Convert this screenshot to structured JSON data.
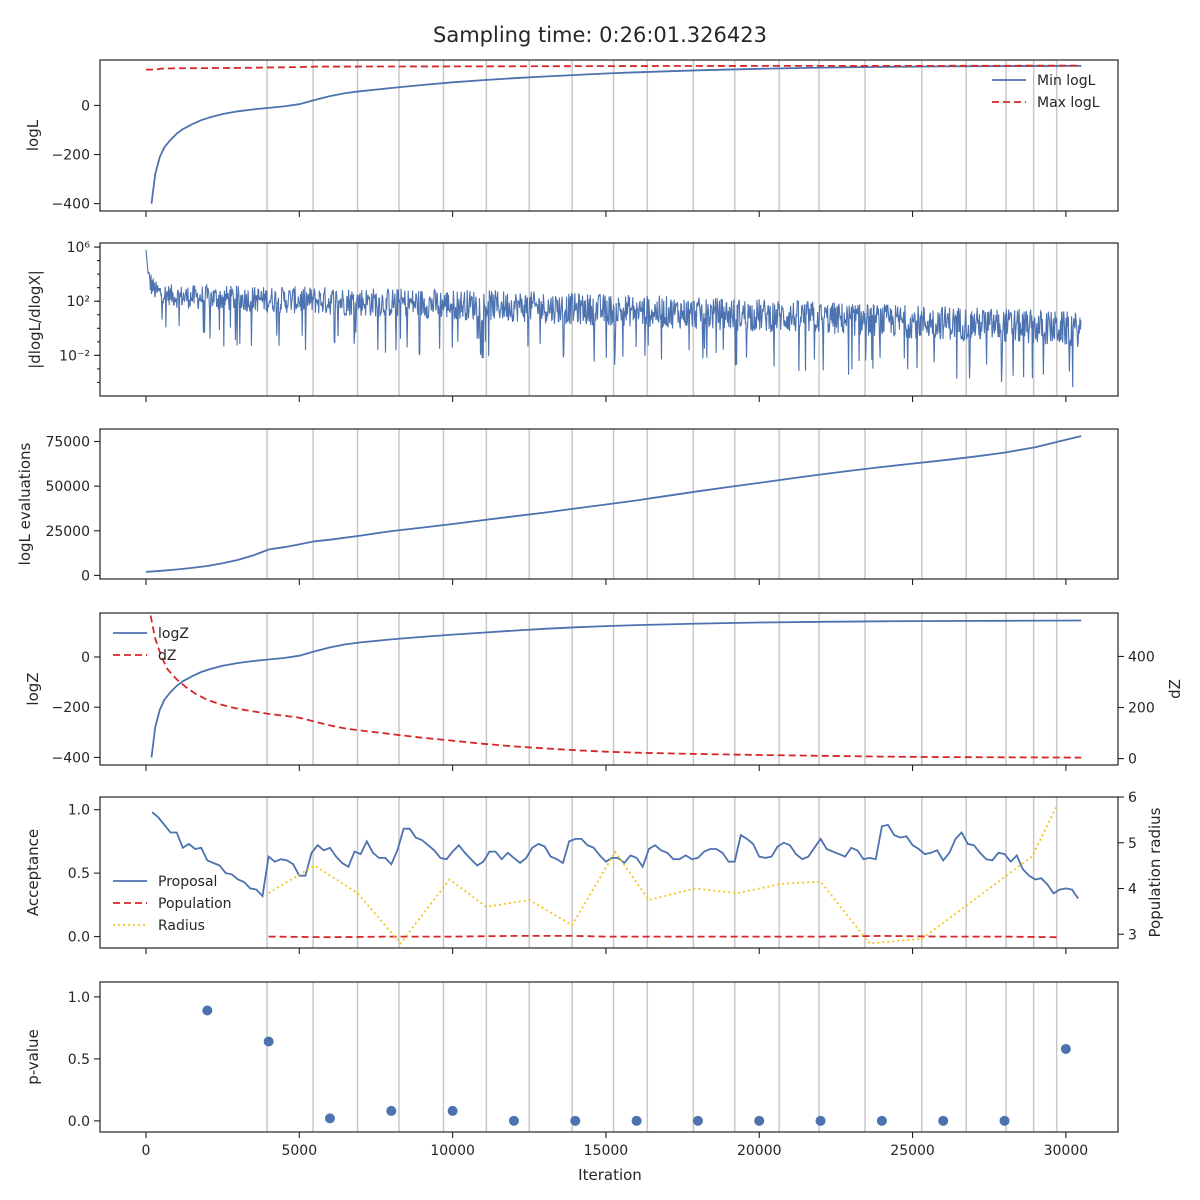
{
  "figure": {
    "title": "Sampling time: 0:26:01.326423",
    "xlabel": "Iteration"
  },
  "colors": {
    "blue": "#4c72b0",
    "red": "#d62728",
    "gold": "#f5c518",
    "vline": "#c8c8c8"
  },
  "chart_data": [
    {
      "type": "line",
      "name": "logL-panel",
      "ylabel": "logL",
      "xlim": [
        -1500,
        31700
      ],
      "ylim": [
        -430,
        185
      ],
      "yticks": [
        -400,
        -200,
        0
      ],
      "ytick_labels": [
        "−400",
        "−200",
        "0"
      ],
      "legend": "upper-right",
      "series": [
        {
          "name": "Min logL",
          "style": "solid",
          "color": "#4c72b0",
          "x": [
            180,
            300,
            450,
            600,
            800,
            1000,
            1200,
            1500,
            1800,
            2100,
            2500,
            3000,
            3500,
            4000,
            4500,
            5000,
            5500,
            6000,
            6500,
            7000,
            8000,
            9000,
            10000,
            11000,
            12000,
            13000,
            14000,
            15000,
            16000,
            17000,
            18000,
            20000,
            22000,
            24000,
            26000,
            28000,
            30500
          ],
          "y": [
            -400,
            -280,
            -210,
            -170,
            -140,
            -115,
            -97,
            -77,
            -60,
            -48,
            -35,
            -24,
            -16,
            -10,
            -4,
            5,
            22,
            38,
            50,
            58,
            71,
            83,
            94,
            103,
            111,
            118,
            124,
            130,
            135,
            139,
            143,
            149,
            154,
            157,
            159,
            160,
            161
          ]
        },
        {
          "name": "Max logL",
          "style": "dashed",
          "color": "#d62728",
          "x": [
            0,
            300,
            500,
            1000,
            3000,
            5000,
            5500,
            10000,
            15000,
            20000,
            25000,
            30500
          ],
          "y": [
            146,
            146,
            150,
            151,
            153,
            156,
            158,
            159,
            160,
            161,
            161,
            162
          ]
        }
      ]
    },
    {
      "type": "line",
      "name": "dlogL-panel",
      "ylabel": "|dlogL/dlogX|",
      "yscale": "log",
      "xlim": [
        -1500,
        31700
      ],
      "ylim_log10": [
        -5,
        6.3
      ],
      "yticks_log10": [
        -2,
        2,
        6
      ],
      "ytick_labels": [
        "10⁻²",
        "10²",
        "10⁶"
      ],
      "envelope": {
        "x": [
          0,
          100,
          300,
          600,
          1000,
          2000,
          4000,
          6000,
          8000,
          10000,
          12000,
          14000,
          16000,
          18000,
          20000,
          22000,
          24000,
          26000,
          28000,
          30500
        ],
        "upper_log10": [
          5.8,
          4.5,
          3.5,
          3.3,
          3.2,
          3.2,
          3.1,
          3.1,
          3.0,
          2.9,
          2.8,
          2.6,
          2.5,
          2.3,
          2.2,
          2.0,
          1.8,
          1.7,
          1.5,
          1.2
        ],
        "lower_log10": [
          2.2,
          1.5,
          1.2,
          1.0,
          0.6,
          0.3,
          0.1,
          -0.2,
          -0.4,
          -0.6,
          -0.8,
          -1.0,
          -1.2,
          -1.4,
          -1.6,
          -1.8,
          -2.0,
          -2.2,
          -2.5,
          -2.8
        ]
      }
    },
    {
      "type": "line",
      "name": "evals-panel",
      "ylabel": "logL evaluations",
      "xlim": [
        -1500,
        31700
      ],
      "ylim": [
        -2000,
        82000
      ],
      "yticks": [
        0,
        25000,
        50000,
        75000
      ],
      "ytick_labels": [
        "0",
        "25000",
        "50000",
        "75000"
      ],
      "series": [
        {
          "name": "",
          "style": "solid",
          "color": "#4c72b0",
          "x": [
            0,
            500,
            1000,
            1500,
            2000,
            2500,
            3000,
            3500,
            4000,
            4500,
            5000,
            5500,
            6000,
            7000,
            8000,
            9000,
            10000,
            11000,
            12000,
            13000,
            14000,
            15000,
            16000,
            17000,
            18000,
            19000,
            20000,
            21000,
            22000,
            23000,
            24000,
            25000,
            26000,
            27000,
            28000,
            29000,
            30000,
            30500
          ],
          "y": [
            2000,
            2600,
            3300,
            4200,
            5300,
            6800,
            8700,
            11200,
            14500,
            15800,
            17400,
            19100,
            20000,
            22300,
            24800,
            26800,
            28800,
            31000,
            33100,
            35200,
            37500,
            39700,
            42000,
            44600,
            47100,
            49500,
            51800,
            54200,
            56500,
            58700,
            60700,
            62600,
            64500,
            66500,
            68800,
            71800,
            76000,
            78000
          ]
        }
      ]
    },
    {
      "type": "line",
      "name": "logZ-panel",
      "ylabel": "logZ",
      "ylabel_right": "dZ",
      "xlim": [
        -1500,
        31700
      ],
      "ylim": [
        -430,
        175
      ],
      "yticks": [
        -400,
        -200,
        0
      ],
      "ytick_labels": [
        "−400",
        "−200",
        "0"
      ],
      "ylim_right": [
        -25,
        570
      ],
      "yticks_right": [
        0,
        200,
        400
      ],
      "ytick_labels_right": [
        "0",
        "200",
        "400"
      ],
      "legend": "upper-left",
      "series": [
        {
          "name": "logZ",
          "style": "solid",
          "color": "#4c72b0",
          "axis": "left",
          "x": [
            180,
            300,
            450,
            600,
            800,
            1000,
            1200,
            1500,
            1800,
            2100,
            2500,
            3000,
            3500,
            4000,
            4500,
            5000,
            5500,
            6000,
            6500,
            7000,
            8000,
            9000,
            10000,
            11000,
            12000,
            13000,
            14000,
            15000,
            16000,
            18000,
            20000,
            22000,
            24000,
            26000,
            28000,
            30500
          ],
          "y": [
            -400,
            -280,
            -210,
            -170,
            -140,
            -115,
            -97,
            -77,
            -60,
            -48,
            -35,
            -24,
            -16,
            -10,
            -4,
            5,
            22,
            38,
            50,
            58,
            70,
            80,
            89,
            97,
            105,
            112,
            118,
            123,
            127,
            133,
            137,
            140,
            142,
            143,
            144,
            145
          ]
        },
        {
          "name": "dZ",
          "style": "dashed",
          "color": "#d62728",
          "axis": "right",
          "x": [
            150,
            300,
            500,
            700,
            1000,
            1300,
            1600,
            2000,
            2500,
            3000,
            3500,
            4000,
            4500,
            5000,
            5500,
            6000,
            6500,
            7000,
            8000,
            9000,
            10000,
            11000,
            12000,
            13000,
            14000,
            15000,
            16000,
            18000,
            20000,
            22000,
            24000,
            26000,
            28000,
            30500
          ],
          "y": [
            560,
            470,
            400,
            350,
            310,
            280,
            255,
            230,
            210,
            195,
            185,
            175,
            168,
            160,
            145,
            130,
            118,
            110,
            96,
            82,
            70,
            58,
            48,
            40,
            33,
            27,
            23,
            18,
            14,
            11,
            8,
            6,
            5,
            4
          ]
        }
      ]
    },
    {
      "type": "line",
      "name": "acceptance-panel",
      "ylabel": "Acceptance",
      "ylabel_right": "Population radius",
      "xlim": [
        -1500,
        31700
      ],
      "ylim": [
        -0.09,
        1.1
      ],
      "yticks": [
        0,
        0.5,
        1.0
      ],
      "ytick_labels": [
        "0.0",
        "0.5",
        "1.0"
      ],
      "ylim_right": [
        2.7,
        6.0
      ],
      "yticks_right": [
        3,
        4,
        5,
        6
      ],
      "ytick_labels_right": [
        "3",
        "4",
        "5",
        "6"
      ],
      "legend": "lower-left",
      "series": [
        {
          "name": "Proposal",
          "style": "solid",
          "color": "#4c72b0",
          "axis": "left",
          "x": [
            200,
            400,
            600,
            800,
            1000,
            1200,
            1400,
            1600,
            1800,
            2000,
            2200,
            2400,
            2600,
            2800,
            3000,
            3200,
            3400,
            3600,
            3800,
            4000,
            4200,
            4400,
            4600,
            4800,
            5000,
            5200,
            5400,
            5600,
            5800,
            6000,
            6200,
            6400,
            6600,
            6800,
            7000,
            7200,
            7400,
            7600,
            7800,
            8000,
            8200,
            8400,
            8600,
            8800,
            9000,
            9200,
            9400,
            9600,
            9800,
            10000,
            10200,
            10400,
            10600,
            10800,
            11000,
            11200,
            11400,
            11600,
            11800,
            12000,
            12200,
            12400,
            12600,
            12800,
            13000,
            13200,
            13400,
            13600,
            13800,
            14000,
            14200,
            14400,
            14600,
            14800,
            15000,
            15200,
            15400,
            15600,
            15800,
            16000,
            16200,
            16400,
            16600,
            16800,
            17000,
            17200,
            17400,
            17600,
            17800,
            18000,
            18200,
            18400,
            18600,
            18800,
            19000,
            19200,
            19400,
            19600,
            19800,
            20000,
            20200,
            20400,
            20600,
            20800,
            21000,
            21200,
            21400,
            21600,
            21800,
            22000,
            22200,
            22400,
            22600,
            22800,
            23000,
            23200,
            23400,
            23600,
            23800,
            24000,
            24200,
            24400,
            24600,
            24800,
            25000,
            25200,
            25400,
            25600,
            25800,
            26000,
            26200,
            26400,
            26600,
            26800,
            27000,
            27200,
            27400,
            27600,
            27800,
            28000,
            28200,
            28400,
            28600,
            28800,
            29000,
            29200,
            29400,
            29600,
            29800,
            30000,
            30200,
            30400
          ],
          "y": [
            0.98,
            0.94,
            0.88,
            0.82,
            0.82,
            0.7,
            0.73,
            0.69,
            0.7,
            0.6,
            0.58,
            0.56,
            0.5,
            0.49,
            0.45,
            0.43,
            0.38,
            0.37,
            0.32,
            0.63,
            0.59,
            0.61,
            0.6,
            0.57,
            0.48,
            0.48,
            0.66,
            0.72,
            0.68,
            0.7,
            0.63,
            0.58,
            0.55,
            0.67,
            0.65,
            0.75,
            0.66,
            0.62,
            0.62,
            0.57,
            0.68,
            0.85,
            0.85,
            0.78,
            0.76,
            0.72,
            0.68,
            0.62,
            0.61,
            0.67,
            0.72,
            0.66,
            0.61,
            0.56,
            0.59,
            0.67,
            0.67,
            0.61,
            0.66,
            0.62,
            0.58,
            0.62,
            0.7,
            0.73,
            0.71,
            0.63,
            0.61,
            0.58,
            0.75,
            0.77,
            0.77,
            0.72,
            0.7,
            0.64,
            0.59,
            0.62,
            0.62,
            0.58,
            0.64,
            0.62,
            0.55,
            0.69,
            0.72,
            0.68,
            0.66,
            0.61,
            0.61,
            0.64,
            0.61,
            0.62,
            0.67,
            0.69,
            0.69,
            0.66,
            0.59,
            0.59,
            0.8,
            0.77,
            0.73,
            0.63,
            0.62,
            0.63,
            0.71,
            0.74,
            0.72,
            0.65,
            0.61,
            0.63,
            0.7,
            0.77,
            0.69,
            0.67,
            0.65,
            0.63,
            0.7,
            0.68,
            0.61,
            0.62,
            0.61,
            0.87,
            0.88,
            0.8,
            0.78,
            0.79,
            0.72,
            0.69,
            0.65,
            0.66,
            0.68,
            0.6,
            0.66,
            0.77,
            0.82,
            0.73,
            0.72,
            0.66,
            0.61,
            0.6,
            0.66,
            0.65,
            0.59,
            0.64,
            0.53,
            0.48,
            0.45,
            0.46,
            0.41,
            0.34,
            0.37,
            0.38,
            0.37,
            0.3
          ]
        },
        {
          "name": "Population",
          "style": "dashed",
          "color": "#d62728",
          "axis": "left",
          "x": [
            4000,
            6000,
            8000,
            10000,
            12000,
            14000,
            15000,
            16000,
            18000,
            20000,
            22000,
            24000,
            26000,
            28000,
            29700
          ],
          "y": [
            0.0,
            -0.005,
            0.0,
            0.0,
            0.005,
            0.005,
            0.0,
            0.0,
            0.0,
            0.0,
            0.0,
            0.005,
            0.0,
            0.0,
            -0.005
          ]
        },
        {
          "name": "Radius",
          "style": "dotted",
          "color": "#f5c518",
          "axis": "right",
          "x": [
            4000,
            5500,
            6900,
            8300,
            9900,
            11100,
            12500,
            13900,
            15300,
            16400,
            17900,
            19300,
            20700,
            22000,
            23600,
            25300,
            26700,
            28100,
            28900,
            29700
          ],
          "y": [
            3.9,
            4.5,
            3.9,
            2.8,
            4.2,
            3.6,
            3.75,
            3.2,
            4.8,
            3.75,
            4.0,
            3.9,
            4.1,
            4.15,
            2.8,
            2.9,
            3.6,
            4.3,
            4.7,
            5.8
          ]
        }
      ]
    },
    {
      "type": "scatter",
      "name": "pvalue-panel",
      "ylabel": "p-value",
      "xlim": [
        -1500,
        31700
      ],
      "ylim": [
        -0.09,
        1.12
      ],
      "yticks": [
        0,
        0.5,
        1.0
      ],
      "ytick_labels": [
        "0.0",
        "0.5",
        "1.0"
      ],
      "xticks": [
        0,
        5000,
        10000,
        15000,
        20000,
        25000,
        30000
      ],
      "xtick_labels": [
        "0",
        "5000",
        "10000",
        "15000",
        "20000",
        "25000",
        "30000"
      ],
      "series": [
        {
          "name": "",
          "color": "#4c72b0",
          "x": [
            2000,
            4000,
            6000,
            8000,
            10000,
            12000,
            14000,
            16000,
            18000,
            20000,
            22000,
            24000,
            26000,
            28000,
            30000
          ],
          "y": [
            0.89,
            0.64,
            0.02,
            0.08,
            0.08,
            0.0,
            0.0,
            0.0,
            0.0,
            0.0,
            0.0,
            0.0,
            0.0,
            0.0,
            0.58
          ]
        }
      ]
    }
  ],
  "boundary_iterations": [
    3950,
    5450,
    6900,
    8250,
    9700,
    11100,
    12500,
    13900,
    15250,
    16350,
    17850,
    19200,
    20650,
    21950,
    23450,
    25300,
    26750,
    28050,
    28950,
    29700
  ]
}
